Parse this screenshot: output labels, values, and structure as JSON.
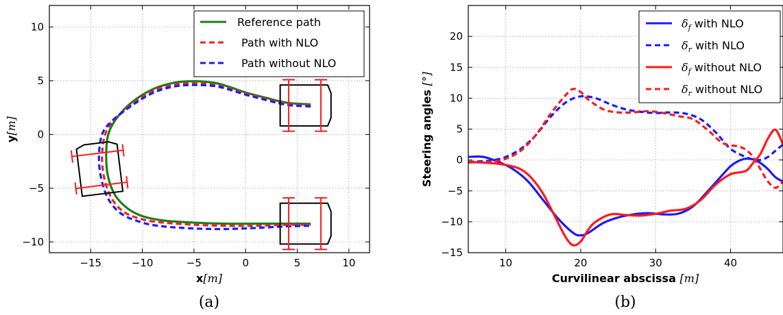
{
  "figure": {
    "caption_a": "(a)",
    "caption_b": "(b)",
    "colors": {
      "green": "#1a7d1a",
      "red": "#ff1a1a",
      "blue": "#1a1aff",
      "black": "#000000"
    }
  },
  "chart_data": [
    {
      "type": "line",
      "xlabel": "x",
      "xlabel_unit": "[m]",
      "ylabel": "y",
      "ylabel_unit": "[m]",
      "xlim": [
        -19,
        12
      ],
      "ylim": [
        -11,
        12
      ],
      "xticks": [
        -15,
        -10,
        -5,
        0,
        5,
        10
      ],
      "xtick_labels": [
        "−15",
        "−10",
        "−5",
        "0",
        "5",
        "10"
      ],
      "yticks": [
        -10,
        -5,
        0,
        5,
        10
      ],
      "ytick_labels": [
        "−10",
        "−5",
        "0",
        "5",
        "10"
      ],
      "grid": true,
      "legend_position": "top-right",
      "series": [
        {
          "name": "Reference path",
          "color": "#1a7d1a",
          "style": "solid",
          "points": [
            [
              6.3,
              2.8
            ],
            [
              4,
              2.95
            ],
            [
              2,
              3.4
            ],
            [
              0,
              3.9
            ],
            [
              -1.5,
              4.4
            ],
            [
              -3,
              4.8
            ],
            [
              -5,
              4.95
            ],
            [
              -7,
              4.8
            ],
            [
              -9,
              4.2
            ],
            [
              -11,
              3
            ],
            [
              -12.5,
              1.5
            ],
            [
              -13.3,
              0
            ],
            [
              -13.5,
              -2
            ],
            [
              -13.3,
              -4
            ],
            [
              -12.6,
              -5.7
            ],
            [
              -11.4,
              -6.9
            ],
            [
              -10,
              -7.6
            ],
            [
              -8,
              -8.0
            ],
            [
              -5,
              -8.2
            ],
            [
              -2,
              -8.3
            ],
            [
              1,
              -8.3
            ],
            [
              4,
              -8.3
            ],
            [
              6.3,
              -8.3
            ]
          ]
        },
        {
          "name": "Path with NLO",
          "color": "#ff1a1a",
          "style": "dashed",
          "points": [
            [
              6.3,
              2.7
            ],
            [
              4,
              2.85
            ],
            [
              2,
              3.3
            ],
            [
              0,
              3.8
            ],
            [
              -1.5,
              4.25
            ],
            [
              -3,
              4.6
            ],
            [
              -5,
              4.75
            ],
            [
              -7,
              4.6
            ],
            [
              -9,
              4.0
            ],
            [
              -11,
              2.8
            ],
            [
              -12.8,
              1.3
            ],
            [
              -13.6,
              0
            ],
            [
              -13.9,
              -2
            ],
            [
              -13.7,
              -4
            ],
            [
              -13.0,
              -5.9
            ],
            [
              -11.8,
              -7.2
            ],
            [
              -10,
              -7.9
            ],
            [
              -8,
              -8.2
            ],
            [
              -5,
              -8.4
            ],
            [
              -2,
              -8.5
            ],
            [
              1,
              -8.5
            ],
            [
              4,
              -8.4
            ],
            [
              6.3,
              -8.4
            ]
          ]
        },
        {
          "name": "Path without NLO",
          "color": "#1a1aff",
          "style": "dashed",
          "points": [
            [
              6.3,
              2.6
            ],
            [
              4,
              2.75
            ],
            [
              2,
              3.2
            ],
            [
              0,
              3.7
            ],
            [
              -1.5,
              4.15
            ],
            [
              -3,
              4.5
            ],
            [
              -5,
              4.6
            ],
            [
              -7,
              4.45
            ],
            [
              -9,
              3.85
            ],
            [
              -11,
              2.7
            ],
            [
              -13,
              1.2
            ],
            [
              -13.9,
              0
            ],
            [
              -14.2,
              -2
            ],
            [
              -14,
              -4
            ],
            [
              -13.3,
              -6.0
            ],
            [
              -12,
              -7.4
            ],
            [
              -10,
              -8.2
            ],
            [
              -8,
              -8.55
            ],
            [
              -5,
              -8.75
            ],
            [
              -2,
              -8.8
            ],
            [
              1,
              -8.7
            ],
            [
              4,
              -8.55
            ],
            [
              6.3,
              -8.5
            ]
          ]
        }
      ]
    },
    {
      "type": "line",
      "xlabel": "Curvilinear abscissa",
      "xlabel_unit": "[m]",
      "ylabel": "Steering angles",
      "ylabel_unit": "[°]",
      "xlim": [
        5,
        47
      ],
      "ylim": [
        -15,
        25
      ],
      "xticks": [
        10,
        20,
        30,
        40
      ],
      "xtick_labels": [
        "10",
        "20",
        "30",
        "40"
      ],
      "yticks": [
        -15,
        -10,
        -5,
        0,
        5,
        10,
        15,
        20
      ],
      "ytick_labels": [
        "−15",
        "−10",
        "−5",
        "0",
        "5",
        "10",
        "15",
        "20"
      ],
      "grid": true,
      "legend_position": "top-right",
      "series": [
        {
          "name": "δf with NLO",
          "color": "#1a1aff",
          "style": "solid",
          "points": [
            [
              5,
              0.5
            ],
            [
              7,
              0.5
            ],
            [
              9,
              -0.3
            ],
            [
              11,
              -1.5
            ],
            [
              13,
              -3.5
            ],
            [
              15,
              -6.5
            ],
            [
              17,
              -9.5
            ],
            [
              19,
              -11.8
            ],
            [
              20,
              -12.2
            ],
            [
              21,
              -11.8
            ],
            [
              23,
              -10.2
            ],
            [
              25,
              -9.3
            ],
            [
              27,
              -8.8
            ],
            [
              29,
              -8.6
            ],
            [
              31,
              -8.8
            ],
            [
              33,
              -8.7
            ],
            [
              35,
              -7.5
            ],
            [
              37,
              -5
            ],
            [
              39,
              -2.3
            ],
            [
              40,
              -1
            ],
            [
              41,
              -0.2
            ],
            [
              42,
              0.2
            ],
            [
              43,
              0.1
            ],
            [
              44,
              -0.5
            ],
            [
              45,
              -1.5
            ],
            [
              46,
              -2.8
            ],
            [
              47,
              -3.5
            ]
          ]
        },
        {
          "name": "δr with NLO",
          "color": "#1a1aff",
          "style": "dashed",
          "points": [
            [
              5,
              -0.3
            ],
            [
              8,
              -0.1
            ],
            [
              10,
              0.5
            ],
            [
              12,
              1.8
            ],
            [
              14,
              4
            ],
            [
              16,
              7
            ],
            [
              18,
              9.3
            ],
            [
              20,
              10.3
            ],
            [
              22,
              10
            ],
            [
              24,
              9
            ],
            [
              26,
              8.2
            ],
            [
              28,
              7.8
            ],
            [
              30,
              7.6
            ],
            [
              32,
              7.7
            ],
            [
              34,
              7.5
            ],
            [
              36,
              6.6
            ],
            [
              38,
              4.5
            ],
            [
              40,
              1.8
            ],
            [
              42,
              0.5
            ],
            [
              43,
              0.1
            ],
            [
              44,
              0
            ],
            [
              45,
              0.5
            ],
            [
              46,
              1.5
            ],
            [
              47,
              2.5
            ]
          ]
        },
        {
          "name": "δf without NLO",
          "color": "#ff1a1a",
          "style": "solid",
          "points": [
            [
              5,
              -0.3
            ],
            [
              8,
              -0.5
            ],
            [
              10,
              -0.8
            ],
            [
              12,
              -1.5
            ],
            [
              13.5,
              -3
            ],
            [
              15,
              -5.5
            ],
            [
              16.5,
              -9
            ],
            [
              18,
              -12.5
            ],
            [
              19,
              -13.8
            ],
            [
              20,
              -13.2
            ],
            [
              21,
              -11.3
            ],
            [
              22,
              -10
            ],
            [
              24,
              -8.8
            ],
            [
              26,
              -8.9
            ],
            [
              28,
              -9
            ],
            [
              30,
              -8.7
            ],
            [
              32,
              -8.2
            ],
            [
              34,
              -7.9
            ],
            [
              36,
              -6.5
            ],
            [
              38,
              -4
            ],
            [
              40,
              -2.3
            ],
            [
              42,
              -1.8
            ],
            [
              43,
              -0.5
            ],
            [
              44,
              1
            ],
            [
              45,
              3.5
            ],
            [
              46,
              4.9
            ],
            [
              47,
              2.5
            ]
          ]
        },
        {
          "name": "δr without NLO",
          "color": "#ff1a1a",
          "style": "dashed",
          "points": [
            [
              5,
              -0.4
            ],
            [
              8,
              -0.3
            ],
            [
              10,
              0.2
            ],
            [
              12,
              1.5
            ],
            [
              14,
              4
            ],
            [
              16,
              7.5
            ],
            [
              18,
              10.5
            ],
            [
              19,
              11.5
            ],
            [
              20,
              11
            ],
            [
              21,
              9.8
            ],
            [
              23,
              8.2
            ],
            [
              25,
              7.7
            ],
            [
              27,
              7.7
            ],
            [
              29,
              7.9
            ],
            [
              31,
              7.6
            ],
            [
              33,
              7.1
            ],
            [
              35,
              6.6
            ],
            [
              37,
              4.8
            ],
            [
              39,
              2.7
            ],
            [
              41,
              2.2
            ],
            [
              42,
              1.7
            ],
            [
              43,
              0.5
            ],
            [
              44,
              -1.5
            ],
            [
              45,
              -3.5
            ],
            [
              46,
              -4.5
            ],
            [
              47,
              -3.5
            ]
          ]
        }
      ]
    }
  ],
  "vehicles": [
    {
      "name": "car-top-right",
      "x": 6.2,
      "y": 2.7,
      "heading_deg": 0
    },
    {
      "name": "car-left",
      "x": -14.2,
      "y": -2.8,
      "heading_deg": 97
    },
    {
      "name": "car-bottom-right",
      "x": 6.2,
      "y": -8.3,
      "heading_deg": 0
    }
  ]
}
